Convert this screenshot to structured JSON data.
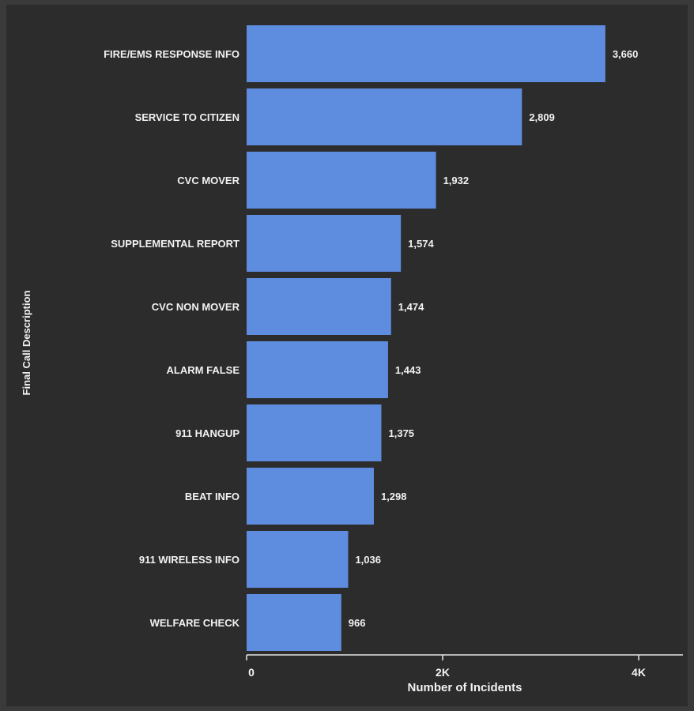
{
  "chart_data": {
    "type": "bar",
    "orientation": "horizontal",
    "categories": [
      "FIRE/EMS RESPONSE INFO",
      "SERVICE TO CITIZEN",
      "CVC MOVER",
      "SUPPLEMENTAL REPORT",
      "CVC NON MOVER",
      "ALARM FALSE",
      "911 HANGUP",
      "BEAT INFO",
      "911 WIRELESS INFO",
      "WELFARE CHECK"
    ],
    "values": [
      3660,
      2809,
      1932,
      1574,
      1474,
      1443,
      1375,
      1298,
      1036,
      966
    ],
    "value_labels": [
      "3,660",
      "2,809",
      "1,932",
      "1,574",
      "1,474",
      "1,443",
      "1,375",
      "1,298",
      "1,036",
      "966"
    ],
    "xlabel": "Number of Incidents",
    "ylabel": "Final Call Description",
    "xlim": [
      0,
      4400
    ],
    "xticks": [
      0,
      2000,
      4000
    ],
    "xtick_labels": [
      "0",
      "2K",
      "4K"
    ],
    "grid": false,
    "colors": {
      "bar": "#5e8de0",
      "background": "#2c2c2c",
      "text": "#f2f2f2",
      "axis": "#e6e6e6"
    }
  }
}
